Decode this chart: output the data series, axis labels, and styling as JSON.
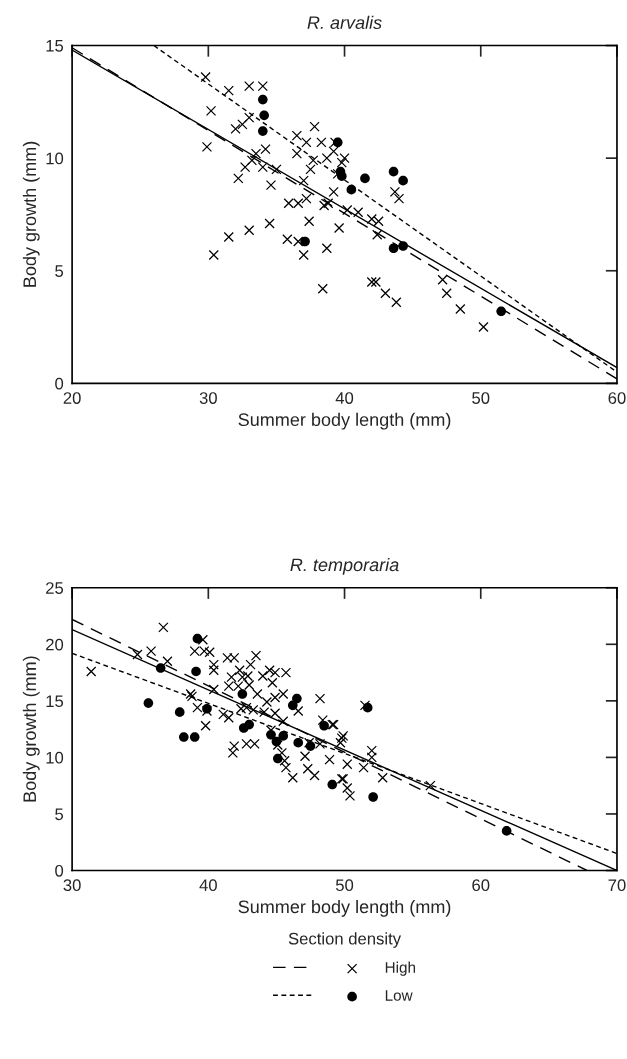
{
  "chart_data": [
    {
      "type": "scatter",
      "title": "R. arvalis",
      "xlabel": "Summer body length (mm)",
      "ylabel": "Body growth (mm)",
      "xlim": [
        20,
        60
      ],
      "ylim": [
        0,
        15
      ],
      "xticks": [
        20,
        30,
        40,
        50,
        60
      ],
      "yticks": [
        0,
        5,
        10,
        15
      ],
      "series": [
        {
          "marker": "cross",
          "color": "#000000",
          "x": [
            29.8,
            31.5,
            33,
            34,
            30.2,
            32.5,
            33,
            32,
            36.5,
            37.8,
            37.2,
            38.3,
            39.3,
            29.9,
            33.5,
            34.2,
            33.2,
            32.7,
            34.0,
            35,
            32.2,
            34.6,
            37.7,
            38.7,
            39.2,
            40,
            37.5,
            39.8,
            37,
            39.2,
            38.5,
            35.9,
            36.6,
            37.2,
            38.8,
            37.4,
            40.2,
            41,
            42,
            43.7,
            44,
            42.5,
            42.4,
            33,
            31.5,
            34.5,
            35.8,
            36.6,
            37,
            38.7,
            39.6,
            30.4,
            38.4,
            42,
            42.3,
            43,
            43.8,
            47.2,
            47.5,
            48.5,
            50.2,
            36.5,
            39.5
          ],
          "values": [
            13.6,
            13.0,
            13.2,
            13.2,
            12.1,
            11.5,
            11.8,
            11.3,
            11.0,
            11.4,
            10.7,
            10.7,
            10.7,
            10.5,
            10.2,
            10.4,
            9.9,
            9.6,
            9.6,
            9.5,
            9.1,
            8.8,
            9.9,
            10.0,
            10.3,
            10.0,
            9.5,
            9.8,
            9.0,
            8.5,
            7.9,
            8.0,
            8.0,
            8.2,
            8.0,
            7.2,
            7.7,
            7.6,
            7.3,
            8.5,
            8.2,
            7.2,
            6.6,
            6.8,
            6.5,
            7.1,
            6.4,
            6.3,
            5.7,
            6.0,
            6.9,
            5.7,
            4.2,
            4.5,
            4.5,
            4.0,
            3.6,
            4.6,
            4.0,
            3.3,
            2.5,
            10.2,
            9.3
          ]
        },
        {
          "marker": "circle",
          "color": "#000000",
          "x": [
            34,
            34.1,
            34,
            39.5,
            39.7,
            39.8,
            40.5,
            41.5,
            43.6,
            44.3,
            37.1,
            43.6,
            44.3,
            51.5
          ],
          "values": [
            12.6,
            11.9,
            11.2,
            10.7,
            9.4,
            9.2,
            8.6,
            9.1,
            9.4,
            9.0,
            6.3,
            6.0,
            6.1,
            3.2
          ]
        },
        {
          "type": "line",
          "line_style": "solid",
          "color": "#000000",
          "x": [
            20,
            60
          ],
          "values": [
            14.8,
            0.7
          ]
        },
        {
          "type": "line",
          "line_style": "dashed",
          "color": "#000000",
          "x": [
            20,
            60
          ],
          "values": [
            14.9,
            0.2
          ]
        },
        {
          "type": "line",
          "line_style": "dotted",
          "color": "#000000",
          "x": [
            26,
            60
          ],
          "values": [
            15,
            0.5
          ]
        }
      ]
    },
    {
      "type": "scatter",
      "title": "R. temporaria",
      "xlabel": "Summer body length (mm)",
      "ylabel": "Body growth (mm)",
      "xlim": [
        30,
        70
      ],
      "ylim": [
        0,
        25
      ],
      "xticks": [
        30,
        40,
        50,
        60,
        70
      ],
      "yticks": [
        0,
        5,
        10,
        15,
        20,
        25
      ],
      "legend": "bottom",
      "legend_title": "Section density",
      "series": [
        {
          "name": "High",
          "marker": "cross",
          "line_style": "dashed",
          "color": "#000000",
          "x": [
            31.4,
            36.7,
            34.8,
            35.8,
            37.0,
            39.0,
            39.7,
            40.1,
            39.6,
            40.4,
            40.4,
            41.4,
            41.9,
            43.5,
            43.1,
            42.3,
            41.7,
            42.5,
            42.9,
            42.2,
            43.0,
            41.5,
            44.0,
            44.5,
            44.9,
            44.7,
            45.7,
            40.4,
            38.7,
            38.8,
            39.2,
            39.9,
            39.8,
            41.1,
            41.5,
            42.4,
            42.8,
            43.3,
            43.6,
            44.3,
            44.9,
            45.5,
            44.9,
            44.1,
            45.5,
            46.6,
            48.2,
            48.4,
            49.1,
            49.8,
            41.9,
            41.8,
            42.8,
            43.4,
            44.6,
            45.1,
            45.4,
            45.6,
            45.7,
            46.2,
            47.1,
            47.3,
            47.8,
            48.2,
            48.9,
            47.4,
            49.8,
            49.2,
            49.9,
            49.7,
            52.0,
            52.0,
            50.2,
            51.4,
            52.8,
            49.9,
            50.2,
            50.4,
            56.3,
            51.5
          ],
          "values": [
            17.6,
            21.5,
            19.1,
            19.4,
            18.5,
            19.4,
            19.4,
            19.3,
            20.4,
            18.2,
            17.7,
            18.8,
            18.8,
            19.0,
            18.2,
            17.7,
            17.1,
            17.1,
            17.2,
            16.3,
            16.4,
            16.3,
            17.2,
            17.7,
            17.5,
            16.6,
            17.5,
            16.0,
            15.6,
            15.4,
            14.4,
            14.1,
            12.8,
            13.8,
            13.5,
            14.3,
            14.4,
            14.2,
            15.6,
            14.9,
            15.3,
            15.6,
            13.9,
            14.0,
            13.2,
            14.1,
            15.2,
            13.3,
            12.9,
            11.7,
            11.0,
            10.4,
            11.2,
            11.2,
            12.4,
            11.1,
            10.4,
            9.7,
            9.1,
            8.2,
            10.1,
            9.0,
            8.4,
            11.2,
            9.8,
            11.3,
            8.1,
            12.9,
            11.9,
            11.3,
            10.6,
            10.0,
            9.4,
            9.1,
            8.2,
            8.1,
            7.3,
            6.6,
            7.5,
            14.6
          ]
        },
        {
          "name": "Low",
          "marker": "circle",
          "line_style": "dotted",
          "color": "#000000",
          "x": [
            35.6,
            36.5,
            37.9,
            38.2,
            39.0,
            39.1,
            39.2,
            39.9,
            42.5,
            42.6,
            43.0,
            44.6,
            45.0,
            45.5,
            45.1,
            46.5,
            46.2,
            46.6,
            47.5,
            48.5,
            49.1,
            51.7,
            52.1,
            61.9
          ],
          "values": [
            14.8,
            17.9,
            14.0,
            11.8,
            11.8,
            17.6,
            20.5,
            14.3,
            15.6,
            12.6,
            12.9,
            12.0,
            11.4,
            11.9,
            9.9,
            15.2,
            14.6,
            11.3,
            11.0,
            12.8,
            7.6,
            14.4,
            6.5,
            3.5
          ]
        },
        {
          "type": "line",
          "line_style": "solid",
          "color": "#000000",
          "x": [
            30,
            70
          ],
          "values": [
            21.3,
            0
          ]
        },
        {
          "type": "line",
          "line_style": "dashed",
          "color": "#000000",
          "x": [
            30,
            67.8
          ],
          "values": [
            22.2,
            0
          ]
        },
        {
          "type": "line",
          "line_style": "dotted",
          "color": "#000000",
          "x": [
            30,
            70
          ],
          "values": [
            19.2,
            1.5
          ]
        }
      ]
    }
  ]
}
